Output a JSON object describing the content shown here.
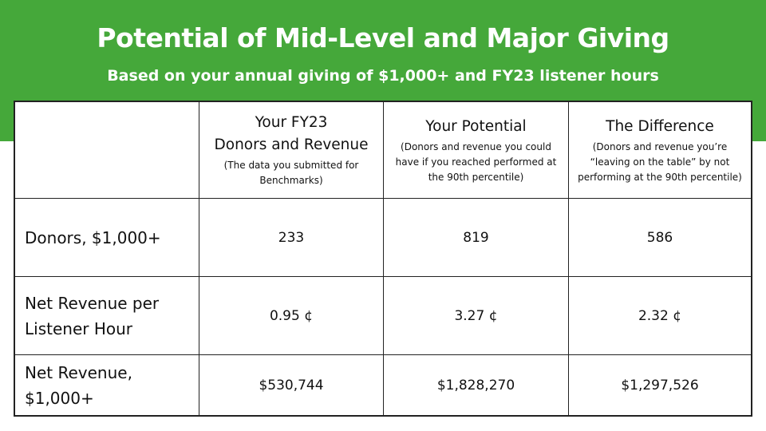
{
  "header": {
    "title": "Potential of Mid-Level and Major Giving",
    "subtitle": "Based on your annual giving of $1,000+ and FY23 listener hours"
  },
  "colors": {
    "banner": "#45a83a",
    "text": "#111111",
    "border": "#222222"
  },
  "table": {
    "columns": [
      {
        "title_line1": "Your FY23",
        "title_line2": "Donors and Revenue",
        "note_line1": "(The data you submitted for",
        "note_line2": "Benchmarks)"
      },
      {
        "title_line1": "Your Potential",
        "note_line1": "(Donors and revenue you could",
        "note_line2": "have if you reached performed at",
        "note_line3": "the  90th percentile)"
      },
      {
        "title_line1": "The Difference",
        "note_line1": "(Donors and revenue you’re",
        "note_line2": "“leaving on the table” by not",
        "note_line3": "performing at the 90th percentile)"
      }
    ],
    "rows": [
      {
        "label_line1": "Donors, $1,000+",
        "label_line2": "",
        "values": [
          "233",
          "819",
          "586"
        ]
      },
      {
        "label_line1": "Net Revenue per",
        "label_line2": "Listener Hour",
        "values": [
          "0.95 ¢",
          "3.27 ¢",
          "2.32 ¢"
        ]
      },
      {
        "label_line1": "Net Revenue,",
        "label_line2": "$1,000+",
        "values": [
          "$530,744",
          "$1,828,270",
          "$1,297,526"
        ]
      }
    ]
  }
}
